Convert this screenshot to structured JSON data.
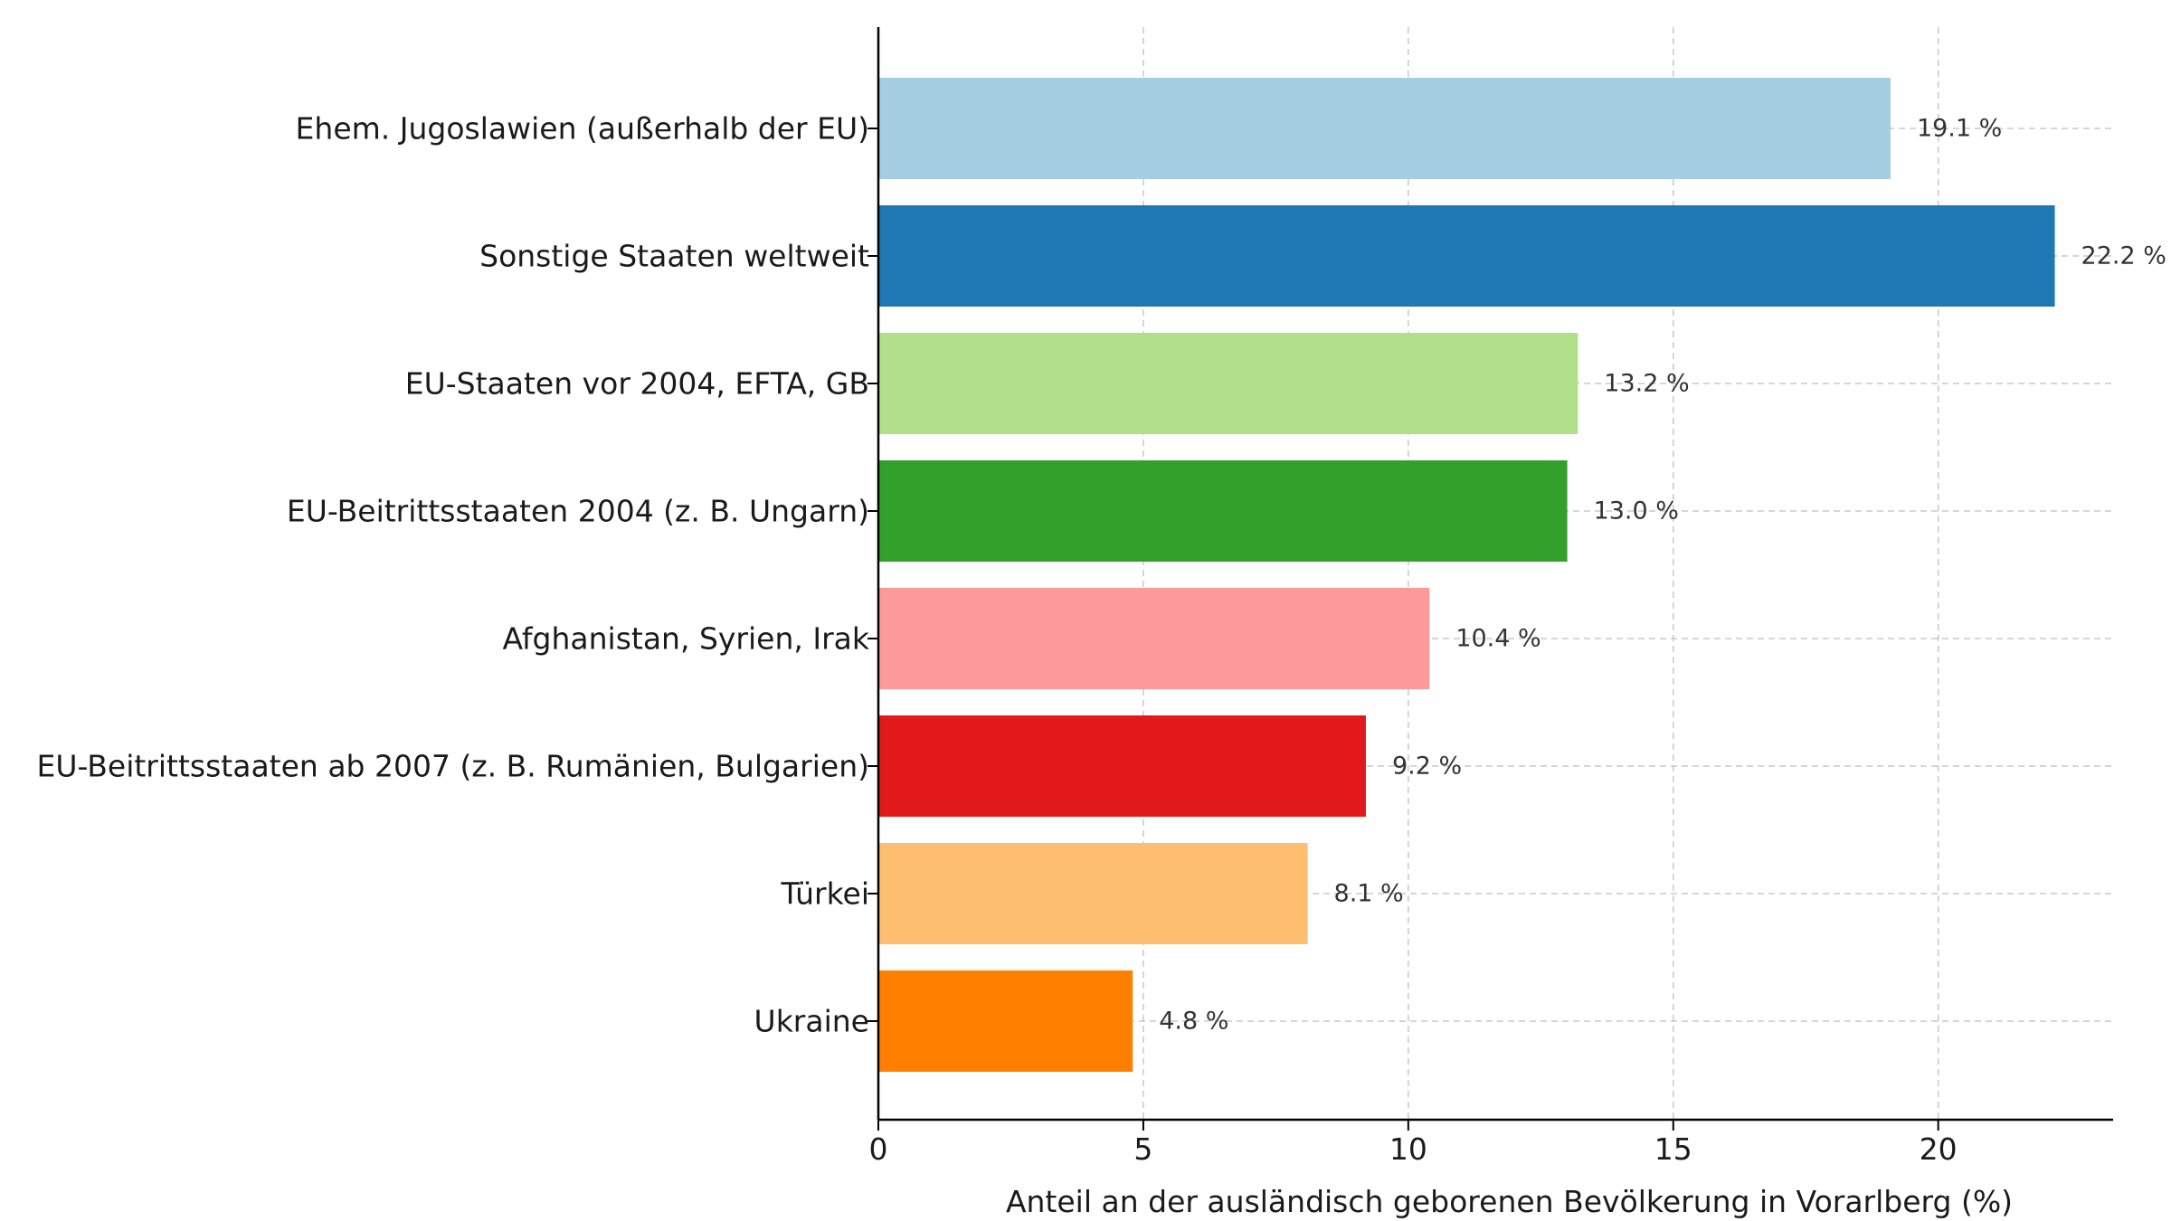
{
  "chart_data": {
    "type": "bar",
    "orientation": "horizontal",
    "categories": [
      "Ehem. Jugoslawien (außerhalb der EU)",
      "Sonstige Staaten weltweit",
      "EU-Staaten vor 2004, EFTA, GB",
      "EU-Beitrittsstaaten 2004 (z. B. Ungarn)",
      "Afghanistan, Syrien, Irak",
      "EU-Beitrittsstaaten ab 2007 (z. B. Rumänien, Bulgarien)",
      "Türkei",
      "Ukraine"
    ],
    "values": [
      19.1,
      22.2,
      13.2,
      13.0,
      10.4,
      9.2,
      8.1,
      4.8
    ],
    "value_labels": [
      "19.1 %",
      "22.2 %",
      "13.2 %",
      "13.0 %",
      "10.4 %",
      "9.2 %",
      "8.1 %",
      "4.8 %"
    ],
    "colors": [
      "#a6cee3",
      "#1f78b4",
      "#b2df8a",
      "#33a02c",
      "#fb9a99",
      "#e31a1c",
      "#fdbf6f",
      "#ff7f00"
    ],
    "title": "",
    "xlabel": "Anteil an der ausländisch geborenen Bevölkerung in Vorarlberg (%)",
    "ylabel": "",
    "xlim": [
      0,
      23.3
    ],
    "xticks": [
      0,
      5,
      10,
      15,
      20
    ],
    "xtick_labels": [
      "0",
      "5",
      "10",
      "15",
      "20"
    ],
    "grid": true
  }
}
